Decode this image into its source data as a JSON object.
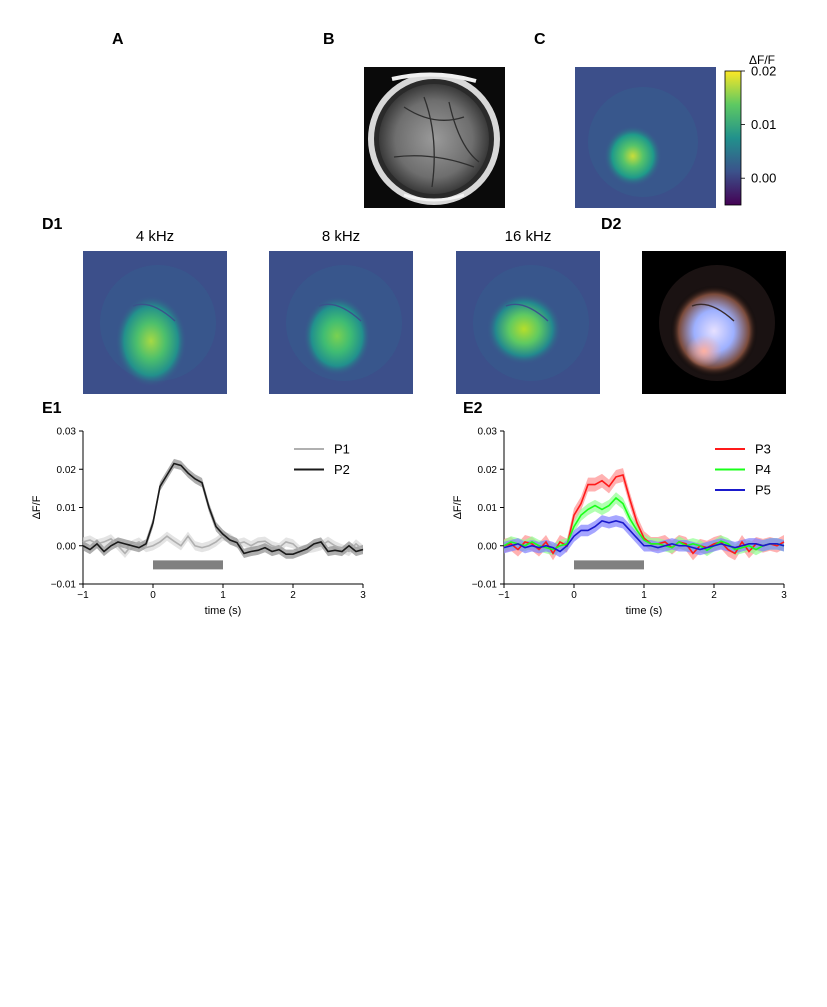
{
  "panels": {
    "a": "A",
    "b": "B",
    "c": "C",
    "d1": "D1",
    "d2": "D2",
    "e1": "E1",
    "e2": "E2"
  },
  "colorbar": {
    "label": "ΔF/F",
    "ticks": [
      "0.02",
      "0.01",
      "0.00"
    ]
  },
  "d1_titles": [
    "4 kHz",
    "8 kHz",
    "16 kHz"
  ],
  "chart_data": [
    {
      "type": "line",
      "panel": "E1",
      "xlabel": "time (s)",
      "ylabel": "ΔF/F",
      "xlim": [
        -1,
        3
      ],
      "ylim": [
        -0.01,
        0.03
      ],
      "xticks": [
        "−1",
        "0",
        "1",
        "2",
        "3"
      ],
      "yticks": [
        "0.03",
        "0.02",
        "0.01",
        "0.00",
        "−0.01"
      ],
      "stimulus": [
        0,
        1
      ],
      "legend_position": "top-right",
      "series": [
        {
          "name": "P1",
          "color": "#b0b0b0",
          "band": "#d8d8d8",
          "err": 0.0012,
          "x": [
            -1.0,
            -0.9,
            -0.8,
            -0.7,
            -0.6,
            -0.5,
            -0.4,
            -0.3,
            -0.2,
            -0.1,
            0.0,
            0.1,
            0.2,
            0.3,
            0.4,
            0.5,
            0.6,
            0.7,
            0.8,
            0.9,
            1.0,
            1.1,
            1.2,
            1.3,
            1.4,
            1.5,
            1.6,
            1.7,
            1.8,
            1.9,
            2.0,
            2.1,
            2.2,
            2.3,
            2.4,
            2.5,
            2.6,
            2.7,
            2.8,
            2.9,
            3.0
          ],
          "y": [
            0.001,
            0.0015,
            0.0005,
            0.001,
            0.0018,
            0.0,
            -0.002,
            0.0002,
            0.001,
            -0.0005,
            0.0,
            0.001,
            0.0025,
            0.0012,
            0.0,
            0.0025,
            0.0,
            -0.0005,
            0.0,
            0.001,
            0.0025,
            0.002,
            0.0005,
            0.001,
            0.0,
            0.001,
            0.0012,
            0.0,
            -0.0005,
            0.001,
            0.0005,
            -0.0012,
            -0.0008,
            -0.0005,
            0.0,
            0.0012,
            0.0,
            -0.0008,
            -0.0015,
            0.0005,
            -0.001
          ]
        },
        {
          "name": "P2",
          "color": "#1a1a1a",
          "band": "#8c8c8c",
          "err": 0.0012,
          "x": [
            -1.0,
            -0.9,
            -0.8,
            -0.7,
            -0.6,
            -0.5,
            -0.4,
            -0.3,
            -0.2,
            -0.1,
            0.0,
            0.1,
            0.2,
            0.3,
            0.4,
            0.5,
            0.6,
            0.7,
            0.8,
            0.9,
            1.0,
            1.1,
            1.2,
            1.3,
            1.4,
            1.5,
            1.6,
            1.7,
            1.8,
            1.9,
            2.0,
            2.1,
            2.2,
            2.3,
            2.4,
            2.5,
            2.6,
            2.7,
            2.8,
            2.9,
            3.0
          ],
          "y": [
            0.0,
            -0.001,
            0.0005,
            -0.0015,
            0.0,
            0.001,
            0.0005,
            0.0,
            -0.0005,
            0.0005,
            0.006,
            0.0155,
            0.0185,
            0.0215,
            0.021,
            0.019,
            0.0175,
            0.0165,
            0.01,
            0.005,
            0.003,
            0.0015,
            0.0008,
            -0.002,
            -0.0015,
            -0.0012,
            -0.0005,
            -0.0015,
            -0.001,
            -0.0022,
            -0.0022,
            -0.0015,
            -0.0008,
            0.0005,
            0.001,
            -0.0015,
            -0.0012,
            -0.0015,
            0.0,
            -0.0015,
            -0.001
          ]
        }
      ]
    },
    {
      "type": "line",
      "panel": "E2",
      "xlabel": "time (s)",
      "ylabel": "ΔF/F",
      "xlim": [
        -1,
        3
      ],
      "ylim": [
        -0.01,
        0.03
      ],
      "xticks": [
        "−1",
        "0",
        "1",
        "2",
        "3"
      ],
      "yticks": [
        "0.03",
        "0.02",
        "0.01",
        "0.00",
        "−0.01"
      ],
      "stimulus": [
        0,
        1
      ],
      "legend_position": "top-right",
      "series": [
        {
          "name": "P3",
          "color": "#ff1a1a",
          "band": "#ff9090",
          "err": 0.0018,
          "x": [
            -1.0,
            -0.9,
            -0.8,
            -0.7,
            -0.6,
            -0.5,
            -0.4,
            -0.3,
            -0.2,
            -0.1,
            0.0,
            0.1,
            0.2,
            0.3,
            0.4,
            0.5,
            0.6,
            0.7,
            0.8,
            0.9,
            1.0,
            1.1,
            1.2,
            1.3,
            1.4,
            1.5,
            1.6,
            1.7,
            1.8,
            1.9,
            2.0,
            2.1,
            2.2,
            2.3,
            2.4,
            2.5,
            2.6,
            2.7,
            2.8,
            2.9,
            3.0
          ],
          "y": [
            0.0,
            0.0005,
            -0.001,
            0.001,
            0.0005,
            -0.001,
            0.001,
            -0.002,
            0.001,
            0.0,
            0.008,
            0.011,
            0.016,
            0.016,
            0.017,
            0.0155,
            0.018,
            0.0185,
            0.012,
            0.006,
            0.002,
            0.0005,
            0.0005,
            0.001,
            -0.0005,
            0.001,
            0.0005,
            -0.002,
            0.0,
            -0.0005,
            0.0005,
            0.001,
            -0.001,
            -0.002,
            0.001,
            -0.0015,
            0.0005,
            0.0,
            0.0005,
            0.0,
            0.001
          ]
        },
        {
          "name": "P4",
          "color": "#1aff1a",
          "band": "#90ff90",
          "err": 0.0015,
          "x": [
            -1.0,
            -0.9,
            -0.8,
            -0.7,
            -0.6,
            -0.5,
            -0.4,
            -0.3,
            -0.2,
            -0.1,
            0.0,
            0.1,
            0.2,
            0.3,
            0.4,
            0.5,
            0.6,
            0.7,
            0.8,
            0.9,
            1.0,
            1.1,
            1.2,
            1.3,
            1.4,
            1.5,
            1.6,
            1.7,
            1.8,
            1.9,
            2.0,
            2.1,
            2.2,
            2.3,
            2.4,
            2.5,
            2.6,
            2.7,
            2.8,
            2.9,
            3.0
          ],
          "y": [
            0.0,
            0.001,
            0.0005,
            0.0,
            0.001,
            0.0,
            -0.0005,
            -0.001,
            0.0,
            0.0005,
            0.005,
            0.008,
            0.0095,
            0.0105,
            0.0095,
            0.0105,
            0.0125,
            0.011,
            0.007,
            0.004,
            0.0015,
            0.0005,
            0.0005,
            0.0,
            -0.0005,
            0.001,
            0.0,
            0.0005,
            0.0,
            -0.0012,
            0.0,
            0.0012,
            0.0005,
            -0.001,
            -0.0005,
            0.0,
            -0.001,
            0.0,
            0.0005,
            0.0005,
            0.0
          ]
        },
        {
          "name": "P5",
          "color": "#1a1acc",
          "band": "#8080ff",
          "err": 0.0015,
          "x": [
            -1.0,
            -0.9,
            -0.8,
            -0.7,
            -0.6,
            -0.5,
            -0.4,
            -0.3,
            -0.2,
            -0.1,
            0.0,
            0.1,
            0.2,
            0.3,
            0.4,
            0.5,
            0.6,
            0.7,
            0.8,
            0.9,
            1.0,
            1.1,
            1.2,
            1.3,
            1.4,
            1.5,
            1.6,
            1.7,
            1.8,
            1.9,
            2.0,
            2.1,
            2.2,
            2.3,
            2.4,
            2.5,
            2.6,
            2.7,
            2.8,
            2.9,
            3.0
          ],
          "y": [
            -0.0005,
            0.0,
            0.0005,
            -0.0005,
            0.0,
            -0.0005,
            0.0,
            -0.0005,
            -0.0015,
            0.0,
            0.0025,
            0.004,
            0.004,
            0.005,
            0.0065,
            0.006,
            0.0065,
            0.006,
            0.004,
            0.002,
            0.0,
            0.0,
            -0.0005,
            0.0,
            0.0005,
            0.0,
            0.0,
            -0.0005,
            -0.001,
            -0.0005,
            0.0,
            0.0005,
            0.0,
            -0.0005,
            0.0,
            0.0005,
            0.0005,
            0.0,
            0.0005,
            0.0005,
            0.0
          ]
        }
      ]
    }
  ]
}
